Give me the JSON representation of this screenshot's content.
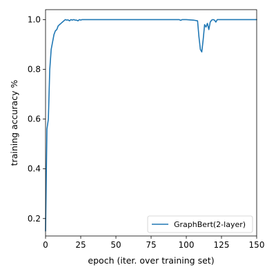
{
  "chart_data": {
    "type": "line",
    "title": "",
    "xlabel": "epoch (iter. over training set)",
    "ylabel": "training accuracy %",
    "xlim": [
      0,
      150
    ],
    "ylim": [
      0.13,
      1.04
    ],
    "x_ticks": [
      0,
      25,
      50,
      75,
      100,
      125,
      150
    ],
    "x_tick_labels": [
      "0",
      "25",
      "50",
      "75",
      "100",
      "125",
      "150"
    ],
    "y_ticks": [
      0.2,
      0.4,
      0.6,
      0.8,
      1.0
    ],
    "y_tick_labels": [
      "0.2",
      "0.4",
      "0.6",
      "0.8",
      "1.0"
    ],
    "grid": false,
    "legend_position": "bottom-right",
    "series": [
      {
        "name": "GraphBert(2-layer)",
        "color": "#1f77b4",
        "x": [
          0,
          1,
          2,
          3,
          4,
          5,
          6,
          7,
          8,
          9,
          10,
          11,
          12,
          13,
          14,
          15,
          16,
          17,
          18,
          19,
          20,
          21,
          22,
          23,
          24,
          25,
          26,
          27,
          28,
          30,
          35,
          40,
          50,
          60,
          70,
          80,
          90,
          95,
          96,
          97,
          98,
          100,
          105,
          108,
          109,
          110,
          111,
          112,
          113,
          114,
          115,
          116,
          117,
          118,
          119,
          120,
          121,
          122,
          123,
          124,
          125,
          130,
          140,
          150
        ],
        "y": [
          0.15,
          0.56,
          0.6,
          0.8,
          0.88,
          0.91,
          0.94,
          0.955,
          0.96,
          0.975,
          0.98,
          0.985,
          0.99,
          0.995,
          1.0,
          0.998,
          0.999,
          0.995,
          1.0,
          0.998,
          1.0,
          0.998,
          0.998,
          0.995,
          1.0,
          0.998,
          1.0,
          1.0,
          1.0,
          1.0,
          1.0,
          1.0,
          1.0,
          1.0,
          1.0,
          1.0,
          1.0,
          1.0,
          0.997,
          1.0,
          1.0,
          1.0,
          0.998,
          0.995,
          0.93,
          0.88,
          0.87,
          0.92,
          0.98,
          0.97,
          0.985,
          0.96,
          0.99,
          0.998,
          1.0,
          0.998,
          0.99,
          1.0,
          1.0,
          1.0,
          1.0,
          1.0,
          1.0,
          1.0
        ]
      }
    ]
  }
}
